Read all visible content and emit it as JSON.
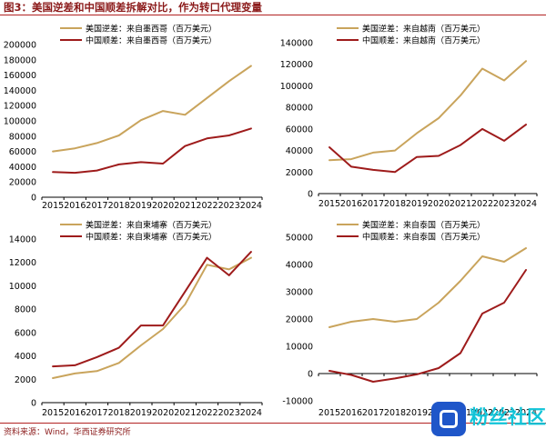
{
  "header": {
    "title": "图3：美国逆差和中国顺差拆解对比，作为转口代理变量"
  },
  "footer": {
    "source": "资料来源：Wind，华西证券研究所"
  },
  "watermark": {
    "text": "粉丝社区",
    "icon": "logo-square-icon"
  },
  "colors": {
    "us": "#c9a45c",
    "cn": "#9e1b1b",
    "accent": "#b22222"
  },
  "chart_data": [
    {
      "type": "line",
      "x": [
        2015,
        2016,
        2017,
        2018,
        2019,
        2020,
        2021,
        2022,
        2023,
        2024
      ],
      "ylim": [
        0,
        200000
      ],
      "yticks": [
        0,
        20000,
        40000,
        60000,
        80000,
        100000,
        120000,
        140000,
        160000,
        180000,
        200000
      ],
      "legend": "top-left",
      "series": [
        {
          "name": "美国逆差：来自墨西哥（百万美元）",
          "values": [
            60000,
            64000,
            71000,
            81000,
            101000,
            113000,
            108000,
            130000,
            152000,
            172000
          ]
        },
        {
          "name": "中国顺差：来自墨西哥（百万美元）",
          "values": [
            33000,
            32000,
            35000,
            43000,
            46000,
            44000,
            67000,
            77000,
            81000,
            90000
          ]
        }
      ]
    },
    {
      "type": "line",
      "x": [
        2015,
        2016,
        2017,
        2018,
        2019,
        2020,
        2021,
        2022,
        2023,
        2024
      ],
      "ylim": [
        0,
        140000
      ],
      "yticks": [
        0,
        20000,
        40000,
        60000,
        80000,
        100000,
        120000,
        140000
      ],
      "legend": "top-left",
      "series": [
        {
          "name": "美国逆差：来自越南（百万美元）",
          "values": [
            31000,
            32000,
            38000,
            40000,
            56000,
            70000,
            91000,
            116000,
            105000,
            123000
          ]
        },
        {
          "name": "中国顺差：来自越南（百万美元）",
          "values": [
            43000,
            25000,
            22000,
            20000,
            34000,
            35000,
            45000,
            60000,
            49000,
            64000
          ]
        }
      ]
    },
    {
      "type": "line",
      "x": [
        2015,
        2016,
        2017,
        2018,
        2019,
        2020,
        2021,
        2022,
        2023,
        2024
      ],
      "ylim": [
        0,
        14000
      ],
      "yticks": [
        0,
        2000,
        4000,
        6000,
        8000,
        10000,
        12000,
        14000
      ],
      "legend": "top-left",
      "series": [
        {
          "name": "美国逆差：来自柬埔寨（百万美元）",
          "values": [
            2100,
            2500,
            2700,
            3400,
            4900,
            6300,
            8400,
            11800,
            11400,
            12400
          ]
        },
        {
          "name": "中国顺差：来自柬埔寨（百万美元）",
          "values": [
            3100,
            3200,
            3900,
            4700,
            6600,
            6600,
            9500,
            12400,
            10900,
            12900
          ]
        }
      ]
    },
    {
      "type": "line",
      "x": [
        2015,
        2016,
        2017,
        2018,
        2019,
        2020,
        2021,
        2022,
        2023,
        2024
      ],
      "ylim": [
        -10000,
        50000
      ],
      "yticks": [
        -10000,
        0,
        10000,
        20000,
        30000,
        40000,
        50000
      ],
      "legend": "top-left",
      "series": [
        {
          "name": "美国逆差：来自泰国（百万美元）",
          "values": [
            17000,
            19000,
            20000,
            19000,
            20000,
            26000,
            34000,
            43000,
            41000,
            46000
          ]
        },
        {
          "name": "中国顺差：来自泰国（百万美元）",
          "values": [
            1000,
            -500,
            -3000,
            -1800,
            -300,
            2000,
            7500,
            22000,
            26000,
            38000
          ]
        }
      ]
    }
  ]
}
